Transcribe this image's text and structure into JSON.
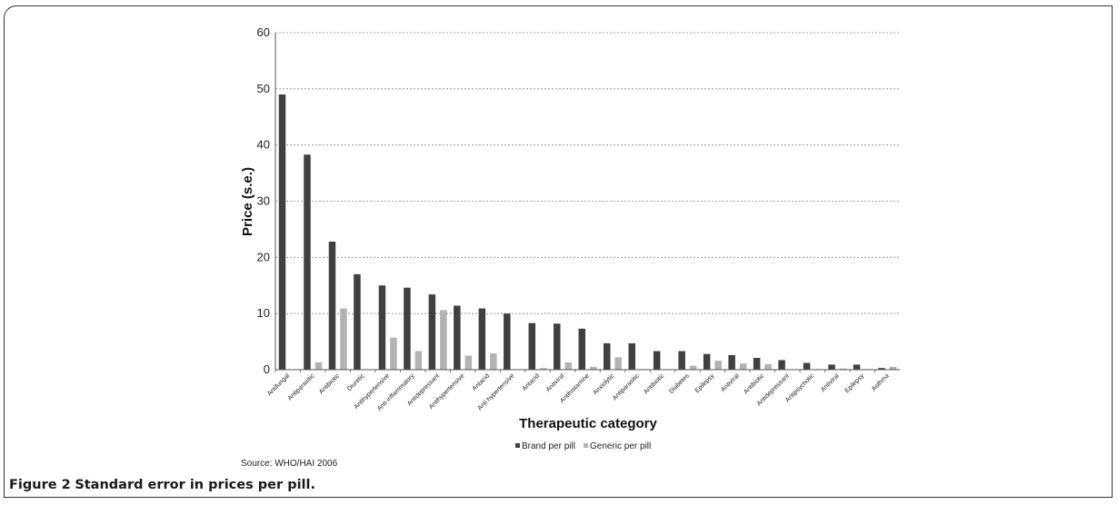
{
  "caption": {
    "label": "Figure 2",
    "text": "Standard error in prices per pill."
  },
  "source": "Source: WHO/HAI 2006",
  "colors": {
    "brand": "#404040",
    "generic": "#b3b3b3",
    "grid": "#888888"
  },
  "chart_data": {
    "type": "bar",
    "xlabel": "Therapeutic category",
    "ylabel": "Price (s.e.)",
    "ylim": [
      0,
      60
    ],
    "yticks": [
      0,
      10,
      20,
      30,
      40,
      50,
      60
    ],
    "grid": true,
    "legend": "bottom",
    "categories": [
      "Antifungal",
      "Antiparasitic",
      "Antibiotic",
      "Diuretic",
      "Antihypertensive",
      "Anti-inflammatory",
      "Antidepressant",
      "Antihypertensive",
      "Antacid",
      "Anti hypertensive",
      "Antacid",
      "Antiviral",
      "Antihistamine",
      "Anxiolytic",
      "Antiparasitic",
      "Antibiotic",
      "Diabetes",
      "Epilepsy",
      "Antiviral",
      "Antibiotic",
      "Antidepressant",
      "Antipsychotic",
      "Antiviral",
      "Epilepsy",
      "Asthma"
    ],
    "series": [
      {
        "name": "Brand per pill",
        "values": [
          49,
          38.3,
          22.8,
          17,
          15,
          14.6,
          13.4,
          11.4,
          10.9,
          10,
          8.3,
          8.2,
          7.3,
          4.7,
          4.7,
          3.3,
          3.3,
          2.8,
          2.6,
          2.1,
          1.7,
          1.2,
          0.9,
          0.9,
          0.3
        ]
      },
      {
        "name": "Generic per pill",
        "values": [
          0,
          1.3,
          10.9,
          0,
          5.7,
          3.3,
          10.6,
          2.5,
          2.9,
          0,
          0.3,
          1.3,
          0.5,
          2.2,
          0,
          0,
          0.7,
          1.6,
          1.1,
          1,
          0,
          0.1,
          0.2,
          0,
          0.5
        ]
      }
    ]
  }
}
